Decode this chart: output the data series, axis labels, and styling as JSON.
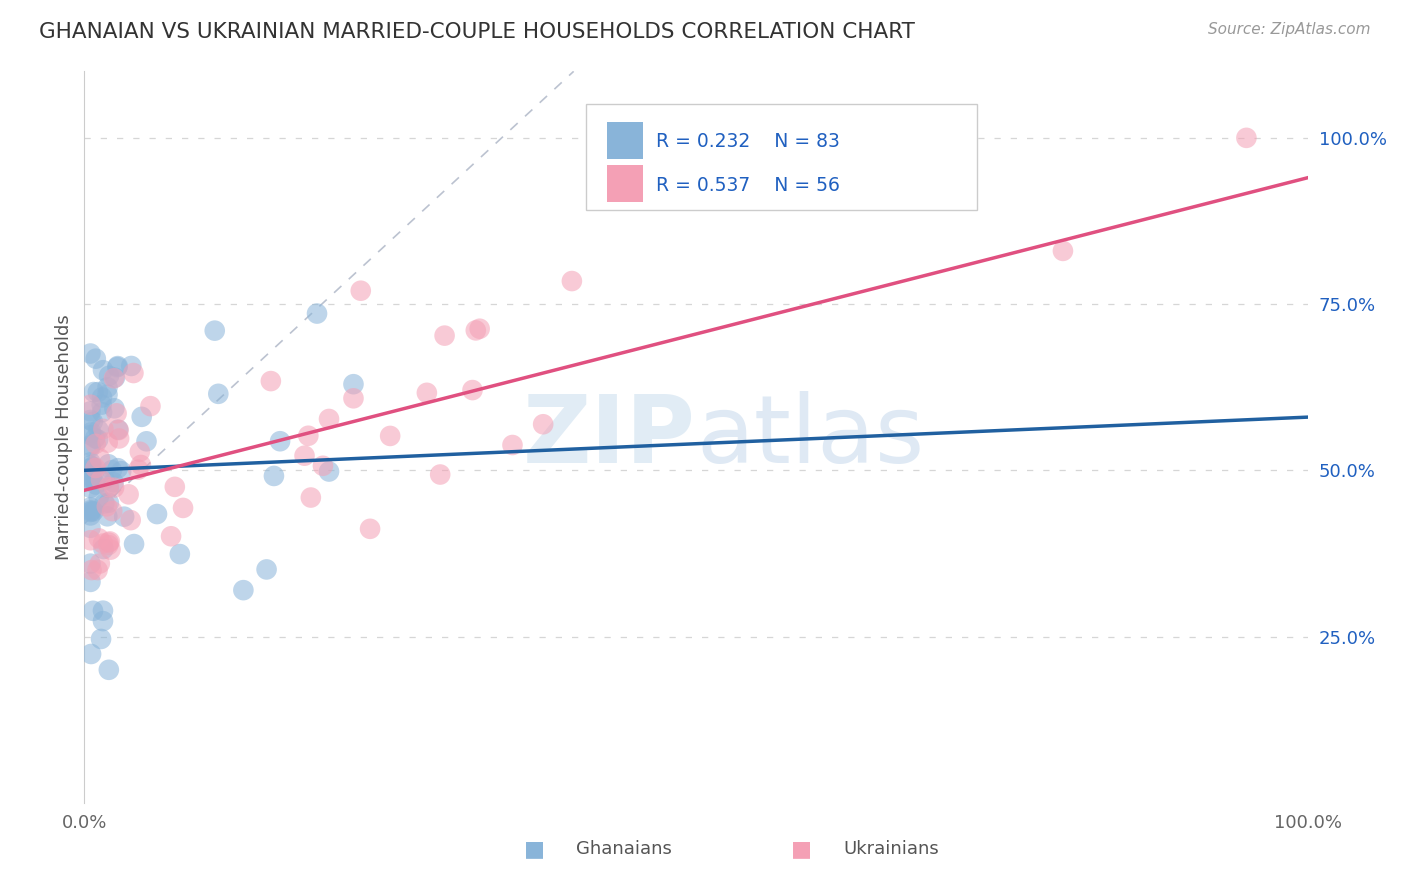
{
  "title": "GHANAIAN VS UKRAINIAN MARRIED-COUPLE HOUSEHOLDS CORRELATION CHART",
  "source": "Source: ZipAtlas.com",
  "ylabel": "Married-couple Households",
  "color_blue": "#89b4d9",
  "color_pink": "#f4a0b5",
  "color_blue_line": "#2060a0",
  "color_pink_line": "#e05080",
  "color_diag": "#aaaaaa",
  "background_color": "#ffffff",
  "title_color": "#333333",
  "source_color": "#999999",
  "legend_color": "#2060c0",
  "watermark_color": "#cde4f5",
  "xlim": [
    0.0,
    1.0
  ],
  "ylim": [
    0.0,
    1.1
  ],
  "ytick_vals": [
    0.25,
    0.5,
    0.75,
    1.0
  ],
  "ytick_labels": [
    "25.0%",
    "50.0%",
    "75.0%",
    "100.0%"
  ],
  "seed_gh": 7,
  "seed_uk": 13,
  "n_gh": 83,
  "n_uk": 56,
  "gh_intercept": 0.5,
  "gh_slope": 0.08,
  "uk_intercept": 0.47,
  "uk_slope": 0.47
}
